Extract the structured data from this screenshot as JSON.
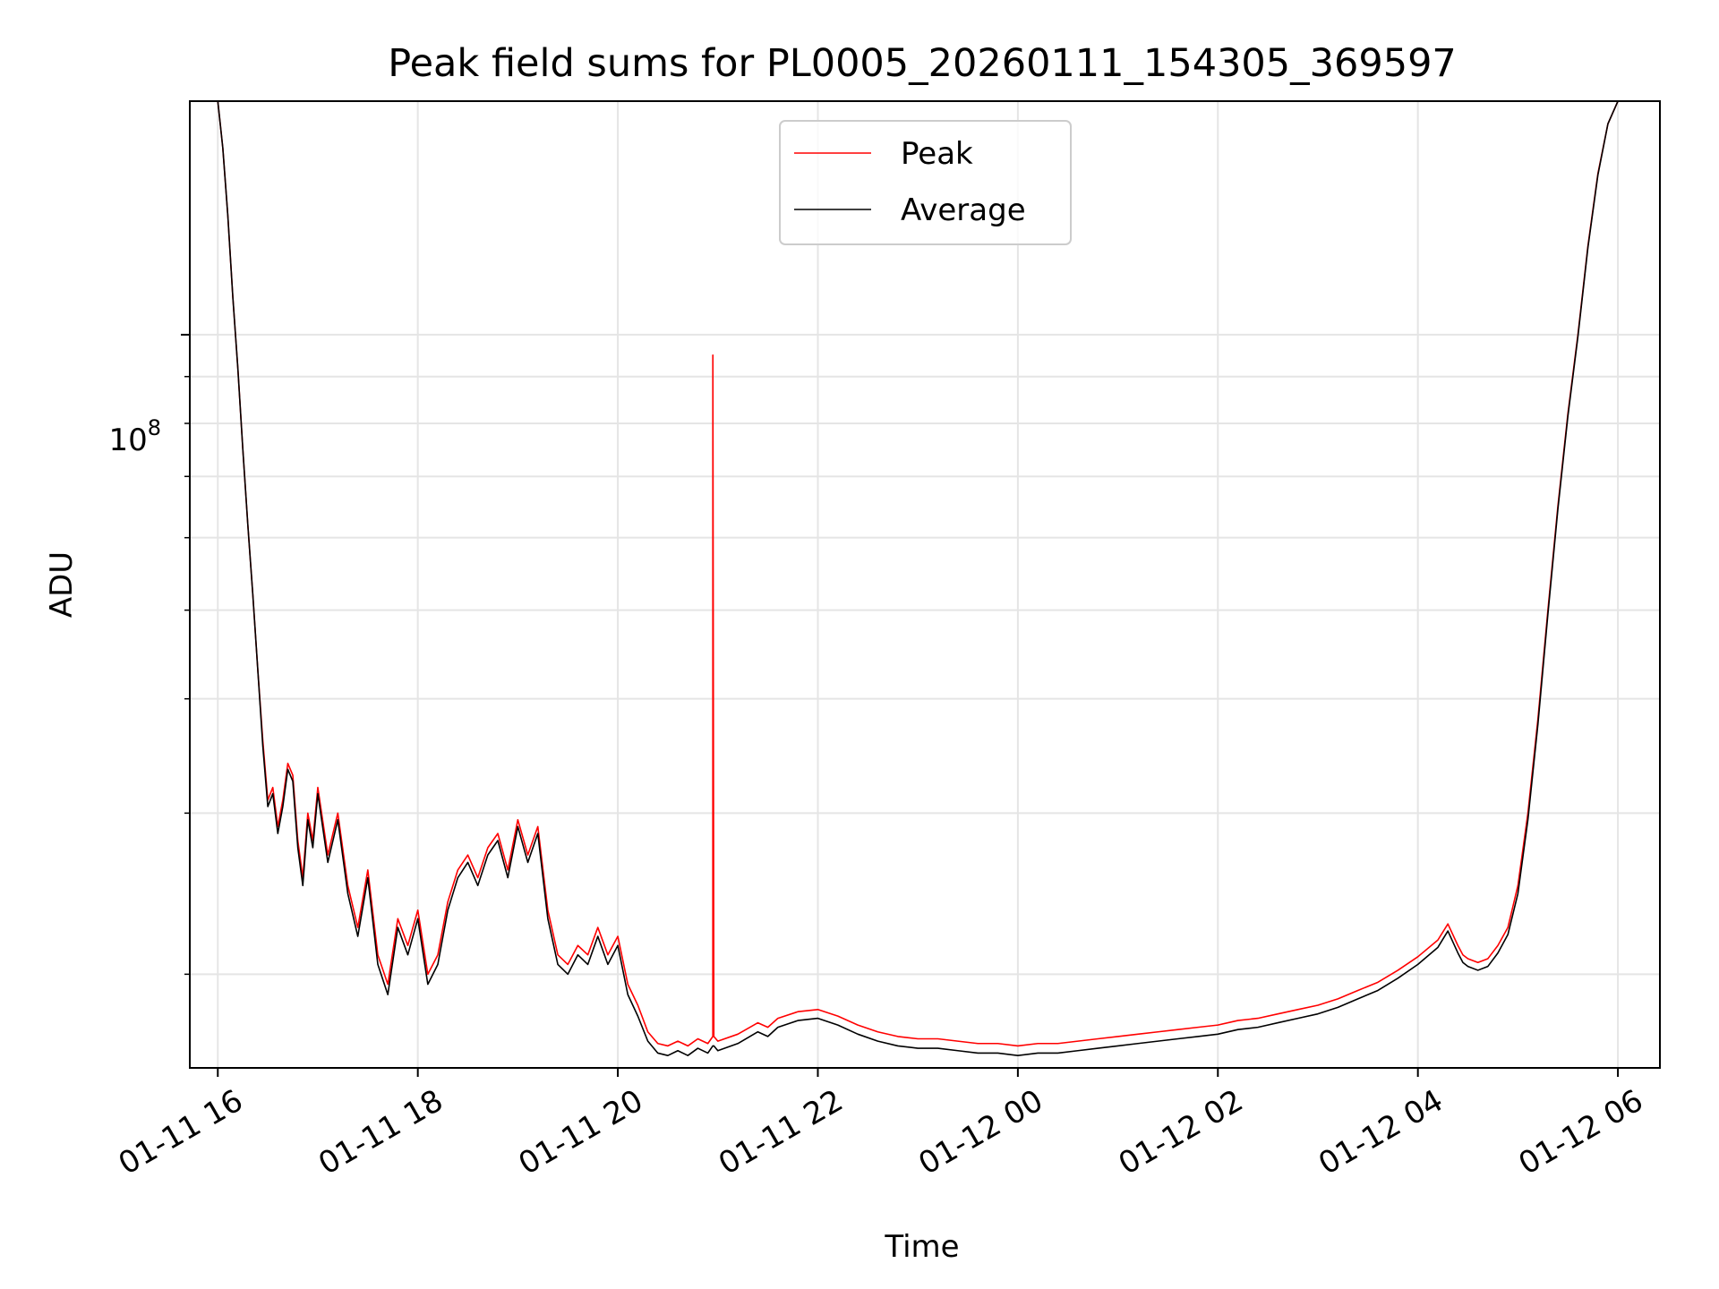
{
  "chart_data": {
    "type": "line",
    "title": "Peak field sums for PL0005_20260111_154305_369597",
    "xlabel": "Time",
    "ylabel": "ADU",
    "yscale": "log",
    "ylim": [
      15800000,
      180000000
    ],
    "xlim_hours": [
      -0.28,
      14.42
    ],
    "grid": true,
    "x_tick_labels": [
      "01-11 16",
      "01-11 18",
      "01-11 20",
      "01-11 22",
      "01-12 00",
      "01-12 02",
      "01-12 04",
      "01-12 06"
    ],
    "x_tick_hours": [
      0,
      2,
      4,
      6,
      8,
      10,
      12,
      14
    ],
    "y_major_tick": {
      "value": 100000000,
      "base": "10",
      "exponent": "8"
    },
    "y_minor_ticks": [
      20000000,
      30000000,
      40000000,
      50000000,
      60000000,
      70000000,
      80000000,
      90000000,
      200000000
    ],
    "legend": {
      "placement": "top-center",
      "entries": [
        "Peak",
        "Average"
      ]
    },
    "colors": {
      "peak": "#ff0000",
      "average": "#000000",
      "grid": "#e5e5e5"
    },
    "series": [
      {
        "name": "Peak",
        "color": "#ff0000",
        "x_hours": [
          0.0,
          0.05,
          0.1,
          0.15,
          0.2,
          0.25,
          0.3,
          0.35,
          0.4,
          0.45,
          0.5,
          0.55,
          0.6,
          0.65,
          0.7,
          0.75,
          0.8,
          0.85,
          0.9,
          0.95,
          1.0,
          1.1,
          1.2,
          1.3,
          1.4,
          1.5,
          1.6,
          1.7,
          1.8,
          1.9,
          2.0,
          2.1,
          2.2,
          2.3,
          2.4,
          2.5,
          2.6,
          2.7,
          2.8,
          2.9,
          3.0,
          3.1,
          3.2,
          3.3,
          3.4,
          3.5,
          3.6,
          3.7,
          3.8,
          3.9,
          4.0,
          4.1,
          4.2,
          4.3,
          4.4,
          4.5,
          4.6,
          4.7,
          4.8,
          4.9,
          4.95,
          4.9501,
          4.96,
          5.0,
          5.2,
          5.4,
          5.5,
          5.6,
          5.8,
          6.0,
          6.2,
          6.4,
          6.6,
          6.8,
          7.0,
          7.2,
          7.4,
          7.6,
          7.8,
          8.0,
          8.2,
          8.4,
          8.6,
          8.8,
          9.0,
          9.2,
          9.4,
          9.6,
          9.8,
          10.0,
          10.2,
          10.4,
          10.6,
          10.8,
          11.0,
          11.2,
          11.4,
          11.6,
          11.8,
          12.0,
          12.2,
          12.3,
          12.4,
          12.45,
          12.5,
          12.6,
          12.7,
          12.8,
          12.9,
          13.0,
          13.1,
          13.2,
          13.3,
          13.4,
          13.5,
          13.6,
          13.7,
          13.8,
          13.9,
          14.0,
          14.05,
          14.1
        ],
        "values": [
          180000000,
          160000000,
          135000000,
          110000000,
          92000000,
          75000000,
          62000000,
          52000000,
          43000000,
          36000000,
          31000000,
          32000000,
          29000000,
          31000000,
          34000000,
          33000000,
          28000000,
          25500000,
          30000000,
          28000000,
          32000000,
          27000000,
          30000000,
          25000000,
          22500000,
          26000000,
          21000000,
          19500000,
          23000000,
          21500000,
          23500000,
          20000000,
          21000000,
          24000000,
          26000000,
          27000000,
          25500000,
          27500000,
          28500000,
          26000000,
          29500000,
          27000000,
          29000000,
          23500000,
          21000000,
          20500000,
          21500000,
          21000000,
          22500000,
          21000000,
          22000000,
          19500000,
          18500000,
          17300000,
          16800000,
          16700000,
          16900000,
          16700000,
          17000000,
          16800000,
          17100000,
          95000000,
          17100000,
          16900000,
          17200000,
          17700000,
          17500000,
          17900000,
          18200000,
          18300000,
          18000000,
          17600000,
          17300000,
          17100000,
          17000000,
          17000000,
          16900000,
          16800000,
          16800000,
          16700000,
          16800000,
          16800000,
          16900000,
          17000000,
          17100000,
          17200000,
          17300000,
          17400000,
          17500000,
          17600000,
          17800000,
          17900000,
          18100000,
          18300000,
          18500000,
          18800000,
          19200000,
          19600000,
          20200000,
          20900000,
          21800000,
          22700000,
          21500000,
          21000000,
          20800000,
          20600000,
          20800000,
          21500000,
          22500000,
          25000000,
          30000000,
          38000000,
          50000000,
          65000000,
          82000000,
          100000000,
          125000000,
          150000000,
          170000000,
          180000000,
          180000000,
          180000000
        ]
      },
      {
        "name": "Average",
        "color": "#000000",
        "x_hours": [
          0.0,
          0.05,
          0.1,
          0.15,
          0.2,
          0.25,
          0.3,
          0.35,
          0.4,
          0.45,
          0.5,
          0.55,
          0.6,
          0.65,
          0.7,
          0.75,
          0.8,
          0.85,
          0.9,
          0.95,
          1.0,
          1.1,
          1.2,
          1.3,
          1.4,
          1.5,
          1.6,
          1.7,
          1.8,
          1.9,
          2.0,
          2.1,
          2.2,
          2.3,
          2.4,
          2.5,
          2.6,
          2.7,
          2.8,
          2.9,
          3.0,
          3.1,
          3.2,
          3.3,
          3.4,
          3.5,
          3.6,
          3.7,
          3.8,
          3.9,
          4.0,
          4.1,
          4.2,
          4.3,
          4.4,
          4.5,
          4.6,
          4.7,
          4.8,
          4.9,
          4.95,
          4.96,
          5.0,
          5.2,
          5.4,
          5.5,
          5.6,
          5.8,
          6.0,
          6.2,
          6.4,
          6.6,
          6.8,
          7.0,
          7.2,
          7.4,
          7.6,
          7.8,
          8.0,
          8.2,
          8.4,
          8.6,
          8.8,
          9.0,
          9.2,
          9.4,
          9.6,
          9.8,
          10.0,
          10.2,
          10.4,
          10.6,
          10.8,
          11.0,
          11.2,
          11.4,
          11.6,
          11.8,
          12.0,
          12.2,
          12.3,
          12.4,
          12.45,
          12.5,
          12.6,
          12.7,
          12.8,
          12.9,
          13.0,
          13.1,
          13.2,
          13.3,
          13.4,
          13.5,
          13.6,
          13.7,
          13.8,
          13.9,
          14.0,
          14.05,
          14.1
        ],
        "values": [
          180000000,
          160000000,
          135000000,
          110000000,
          92000000,
          75000000,
          62000000,
          52000000,
          43000000,
          35500000,
          30500000,
          31500000,
          28500000,
          30500000,
          33500000,
          32500000,
          27500000,
          25000000,
          29500000,
          27500000,
          31500000,
          26500000,
          29500000,
          24500000,
          22000000,
          25500000,
          20500000,
          19000000,
          22500000,
          21000000,
          23000000,
          19500000,
          20500000,
          23500000,
          25500000,
          26500000,
          25000000,
          27000000,
          28000000,
          25500000,
          29000000,
          26500000,
          28500000,
          23000000,
          20500000,
          20000000,
          21000000,
          20500000,
          22000000,
          20500000,
          21500000,
          19000000,
          18000000,
          16900000,
          16400000,
          16300000,
          16500000,
          16300000,
          16600000,
          16400000,
          16700000,
          16700000,
          16500000,
          16800000,
          17300000,
          17100000,
          17500000,
          17800000,
          17900000,
          17600000,
          17200000,
          16900000,
          16700000,
          16600000,
          16600000,
          16500000,
          16400000,
          16400000,
          16300000,
          16400000,
          16400000,
          16500000,
          16600000,
          16700000,
          16800000,
          16900000,
          17000000,
          17100000,
          17200000,
          17400000,
          17500000,
          17700000,
          17900000,
          18100000,
          18400000,
          18800000,
          19200000,
          19800000,
          20500000,
          21400000,
          22300000,
          21100000,
          20600000,
          20400000,
          20200000,
          20400000,
          21100000,
          22100000,
          24500000,
          29500000,
          37500000,
          49500000,
          64500000,
          81500000,
          99500000,
          124500000,
          149500000,
          170000000,
          180000000,
          180000000,
          180000000
        ]
      }
    ]
  }
}
